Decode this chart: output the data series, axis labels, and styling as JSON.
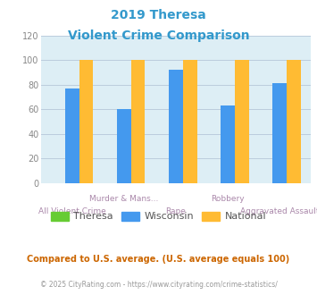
{
  "title_line1": "2019 Theresa",
  "title_line2": "Violent Crime Comparison",
  "title_color": "#3399cc",
  "categories": [
    "All Violent Crime",
    "Murder & Mans...",
    "Rape",
    "Robbery",
    "Aggravated Assault"
  ],
  "x_labels_row1": [
    "",
    "Murder & Mans...",
    "",
    "Robbery",
    ""
  ],
  "x_labels_row2": [
    "All Violent Crime",
    "",
    "Rape",
    "",
    "Aggravated Assault"
  ],
  "theresa": [
    0,
    0,
    0,
    0,
    0
  ],
  "wisconsin": [
    77,
    60,
    92,
    63,
    81
  ],
  "national": [
    100,
    100,
    100,
    100,
    100
  ],
  "theresa_color": "#66cc33",
  "wisconsin_color": "#4499ee",
  "national_color": "#ffbb33",
  "ylim": [
    0,
    120
  ],
  "yticks": [
    0,
    20,
    40,
    60,
    80,
    100,
    120
  ],
  "bg_color": "#ddeef5",
  "fig_bg_color": "#ffffff",
  "legend_labels": [
    "Theresa",
    "Wisconsin",
    "National"
  ],
  "footnote1": "Compared to U.S. average. (U.S. average equals 100)",
  "footnote2": "© 2025 CityRating.com - https://www.cityrating.com/crime-statistics/",
  "footnote1_color": "#cc6600",
  "footnote2_color": "#999999",
  "grid_color": "#bbccdd",
  "label_color": "#aa88aa",
  "tick_color": "#888888"
}
